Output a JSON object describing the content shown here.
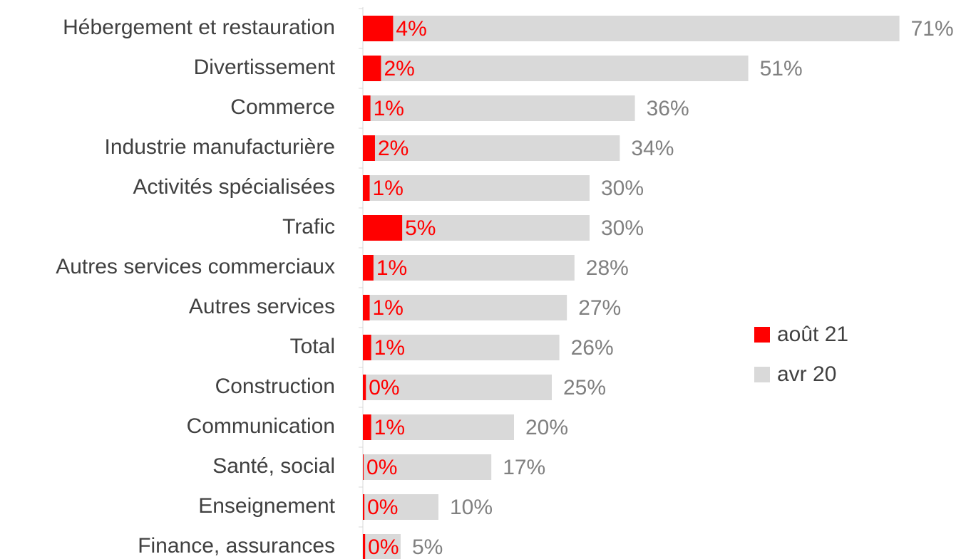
{
  "chart_data": {
    "type": "bar",
    "orientation": "horizontal",
    "categories": [
      "Hébergement et restauration",
      "Divertissement",
      "Commerce",
      "Industrie manufacturière",
      "Activités spécialisées",
      "Trafic",
      "Autres services commerciaux",
      "Autres services",
      "Total",
      "Construction",
      "Communication",
      "Santé, social",
      "Enseignement",
      "Finance, assurances"
    ],
    "series": [
      {
        "name": "avr 20",
        "color": "#d9d9d9",
        "label_color": "#808080",
        "values": [
          71,
          51,
          36,
          34,
          30,
          30,
          28,
          27,
          26,
          25,
          20,
          17,
          10,
          5
        ],
        "value_labels": [
          "71%",
          "51%",
          "36%",
          "34%",
          "30%",
          "30%",
          "28%",
          "27%",
          "26%",
          "25%",
          "20%",
          "17%",
          "10%",
          "5%"
        ]
      },
      {
        "name": "août 21",
        "color": "#ff0000",
        "label_color": "#ff0000",
        "values": [
          4.0,
          2.4,
          1.0,
          1.6,
          0.9,
          5.2,
          1.4,
          0.9,
          1.1,
          0.4,
          1.1,
          0.1,
          0.2,
          0.3
        ],
        "value_labels": [
          "4%",
          "2%",
          "1%",
          "2%",
          "1%",
          "5%",
          "1%",
          "1%",
          "1%",
          "0%",
          "1%",
          "0%",
          "0%",
          "0%"
        ]
      }
    ],
    "xlim": [
      0,
      75
    ],
    "legend": "right",
    "overlap": true
  }
}
